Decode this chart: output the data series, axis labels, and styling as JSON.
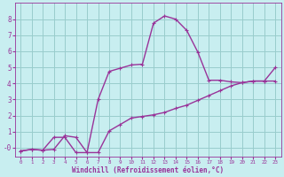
{
  "xlabel": "Windchill (Refroidissement éolien,°C)",
  "background_color": "#c8eef0",
  "line_color": "#993399",
  "grid_color": "#99cccc",
  "xlim": [
    -0.5,
    23.5
  ],
  "ylim": [
    -0.55,
    9.0
  ],
  "yticks": [
    0,
    1,
    2,
    3,
    4,
    5,
    6,
    7,
    8
  ],
  "ytick_labels": [
    "-0",
    "1",
    "2",
    "3",
    "4",
    "5",
    "6",
    "7",
    "8"
  ],
  "xticks": [
    0,
    1,
    2,
    3,
    4,
    5,
    6,
    7,
    8,
    9,
    10,
    11,
    12,
    13,
    14,
    15,
    16,
    17,
    18,
    19,
    20,
    21,
    22,
    23
  ],
  "series1_x": [
    0,
    1,
    2,
    3,
    4,
    5,
    6,
    7,
    8,
    9,
    10,
    11,
    12,
    13,
    14,
    15,
    16,
    17,
    18,
    19,
    20,
    21,
    22,
    23
  ],
  "series1_y": [
    -0.2,
    -0.1,
    -0.15,
    -0.1,
    0.75,
    0.65,
    -0.3,
    -0.3,
    1.05,
    1.45,
    1.85,
    1.95,
    2.05,
    2.2,
    2.45,
    2.65,
    2.95,
    3.25,
    3.55,
    3.85,
    4.05,
    4.15,
    4.15,
    4.15
  ],
  "series2_x": [
    0,
    1,
    2,
    3,
    4,
    5,
    6,
    7,
    8,
    9,
    10,
    11,
    12,
    13,
    14,
    15,
    16,
    17,
    18,
    19,
    20,
    21,
    22,
    23
  ],
  "series2_y": [
    -0.2,
    -0.1,
    -0.15,
    0.65,
    0.65,
    -0.3,
    -0.3,
    3.0,
    4.75,
    4.95,
    5.15,
    5.2,
    7.75,
    8.2,
    8.0,
    7.3,
    5.95,
    4.2,
    4.2,
    4.1,
    4.05,
    4.15,
    4.15,
    5.0
  ]
}
